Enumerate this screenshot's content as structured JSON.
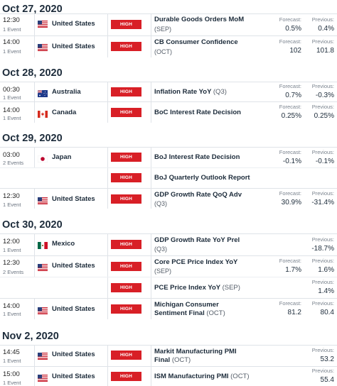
{
  "days": [
    {
      "date": "Oct 27, 2020",
      "rows": [
        {
          "time": "12:30",
          "events": "1 Event",
          "country": "United States",
          "flag": "us-flag",
          "impact": "HIGH",
          "title": "Durable Goods Orders MoM",
          "period": "(SEP)",
          "forecast_label": "Forecast:",
          "forecast": "0.5%",
          "previous_label": "Previous:",
          "previous": "0.4%"
        },
        {
          "time": "14:00",
          "events": "1 Event",
          "country": "United States",
          "flag": "us-flag",
          "impact": "HIGH",
          "title": "CB Consumer Confidence",
          "period": "(OCT)",
          "forecast_label": "Forecast:",
          "forecast": "102",
          "previous_label": "Previous:",
          "previous": "101.8"
        }
      ]
    },
    {
      "date": "Oct 28, 2020",
      "rows": [
        {
          "time": "00:30",
          "events": "1 Event",
          "country": "Australia",
          "flag": "au-flag",
          "impact": "HIGH",
          "title": "Inflation Rate YoY",
          "period": "(Q3)",
          "forecast_label": "Forecast:",
          "forecast": "0.7%",
          "previous_label": "Previous:",
          "previous": "-0.3%"
        },
        {
          "time": "14:00",
          "events": "1 Event",
          "country": "Canada",
          "flag": "ca-flag",
          "impact": "HIGH",
          "title": "BoC Interest Rate Decision",
          "period": "",
          "forecast_label": "Forecast:",
          "forecast": "0.25%",
          "previous_label": "Previous:",
          "previous": "0.25%"
        }
      ]
    },
    {
      "date": "Oct 29, 2020",
      "rows": [
        {
          "time": "03:00",
          "events": "2 Events",
          "country": "Japan",
          "flag": "jp-flag",
          "impact": "HIGH",
          "title": "BoJ Interest Rate Decision",
          "period": "",
          "forecast_label": "Forecast:",
          "forecast": "-0.1%",
          "previous_label": "Previous:",
          "previous": "-0.1%"
        },
        {
          "time": "",
          "events": "",
          "country": "",
          "flag": "",
          "impact": "HIGH",
          "title": "BoJ Quarterly Outlook Report",
          "period": "",
          "forecast_label": "",
          "forecast": "",
          "previous_label": "",
          "previous": ""
        },
        {
          "time": "12:30",
          "events": "1 Event",
          "country": "United States",
          "flag": "us-flag",
          "impact": "HIGH",
          "title": "GDP Growth Rate QoQ Adv",
          "period": "(Q3)",
          "forecast_label": "Forecast:",
          "forecast": "30.9%",
          "previous_label": "Previous:",
          "previous": "-31.4%"
        }
      ]
    },
    {
      "date": "Oct 30, 2020",
      "rows": [
        {
          "time": "12:00",
          "events": "1 Event",
          "country": "Mexico",
          "flag": "mx-flag",
          "impact": "HIGH",
          "title": "GDP Growth Rate YoY Prel",
          "period": "(Q3)",
          "forecast_label": "",
          "forecast": "",
          "previous_label": "Previous:",
          "previous": "-18.7%"
        },
        {
          "time": "12:30",
          "events": "2 Events",
          "country": "United States",
          "flag": "us-flag",
          "impact": "HIGH",
          "title": "Core PCE Price Index YoY",
          "period": "(SEP)",
          "forecast_label": "Forecast:",
          "forecast": "1.7%",
          "previous_label": "Previous:",
          "previous": "1.6%"
        },
        {
          "time": "",
          "events": "",
          "country": "",
          "flag": "",
          "impact": "HIGH",
          "title": "PCE Price Index YoY",
          "period": "(SEP)",
          "forecast_label": "",
          "forecast": "",
          "previous_label": "Previous:",
          "previous": "1.4%"
        },
        {
          "time": "14:00",
          "events": "1 Event",
          "country": "United States",
          "flag": "us-flag",
          "impact": "HIGH",
          "title": "Michigan Consumer Sentiment Final",
          "period": "(OCT)",
          "forecast_label": "Forecast:",
          "forecast": "81.2",
          "previous_label": "Previous:",
          "previous": "80.4"
        }
      ]
    },
    {
      "date": "Nov 2, 2020",
      "rows": [
        {
          "time": "14:45",
          "events": "1 Event",
          "country": "United States",
          "flag": "us-flag",
          "impact": "HIGH",
          "title": "Markit Manufacturing PMI Final",
          "period": "(OCT)",
          "forecast_label": "",
          "forecast": "",
          "previous_label": "Previous:",
          "previous": "53.2"
        },
        {
          "time": "15:00",
          "events": "1 Event",
          "country": "United States",
          "flag": "us-flag",
          "impact": "HIGH",
          "title": "ISM Manufacturing PMI",
          "period": "(OCT)",
          "forecast_label": "",
          "forecast": "",
          "previous_label": "Previous:",
          "previous": "55.4"
        }
      ]
    }
  ],
  "colors": {
    "impact_high": "#d81f26",
    "divider": "#dfe3e8",
    "text": "#1c2b3a"
  }
}
